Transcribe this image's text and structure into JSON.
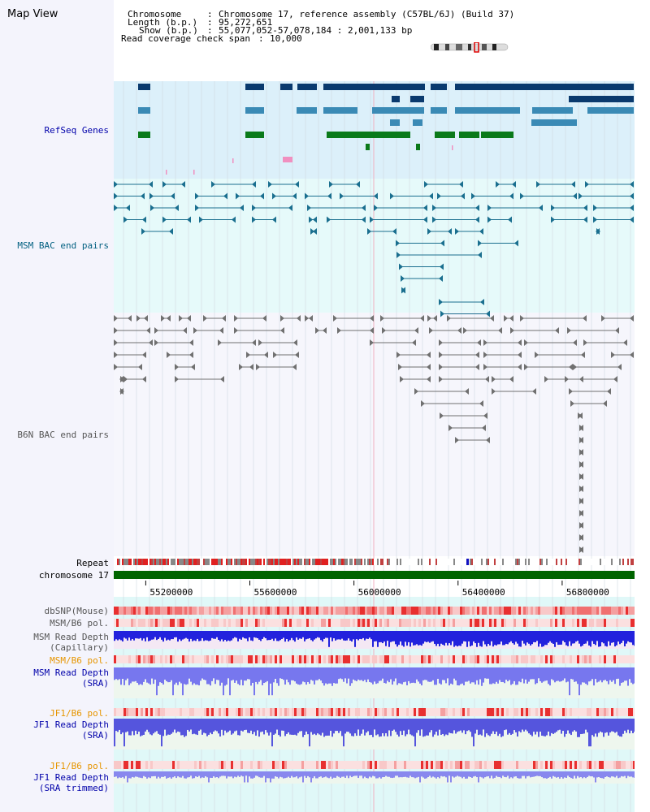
{
  "view": {
    "title": "Map View"
  },
  "header": {
    "chromosome_label": "Chromosome",
    "chromosome_value": "Chromosome 17, reference assembly (C57BL/6J) (Build 37)",
    "length_label": "Length (b.p.)",
    "length_value": "95,272,651",
    "show_label": "Show (b.p.)",
    "show_value": "55,077,052-57,078,184 : 2,001,133 bp",
    "coverage_label": "Read coverage check span",
    "coverage_value": "10,000",
    "sep": ":"
  },
  "tracks": {
    "refseq": "RefSeq Genes",
    "msm_bac": "MSM BAC end pairs",
    "b6n_bac": "B6N BAC end pairs",
    "repeat": "Repeat",
    "chromosome": "chromosome 17",
    "dbsnp": "dbSNP(Mouse)",
    "msm_b6_pol_1": "MSM/B6 pol.",
    "msm_read_depth_cap": "MSM Read Depth\n(Capillary)",
    "msm_b6_pol_2": "MSM/B6 pol.",
    "msm_read_depth_sra": "MSM Read Depth\n(SRA)",
    "jf1_b6_pol_1": "JF1/B6 pol.",
    "jf1_read_depth_sra": "JF1 Read Depth\n(SRA)",
    "jf1_b6_pol_2": "JF1/B6 pol.",
    "jf1_read_depth_trim": "JF1 Read Depth\n(SRA trimmed)"
  },
  "axis": {
    "ticks": [
      "55200000",
      "55600000",
      "56000000",
      "56400000",
      "56800000"
    ],
    "tick_values": [
      55200000,
      55600000,
      56000000,
      56400000,
      56800000
    ],
    "start": 55077052,
    "end": 57078184
  },
  "colors": {
    "refseq_bg": "#dcf0fa",
    "msm_bg": "#e6fafa",
    "b6n_bg": "#f6f6fc",
    "depth_bg": "#e0f8f8",
    "gene_dark": "#0a3a6e",
    "gene_mid": "#3a8ab5",
    "gene_green": "#0a7a1a",
    "chrom_green": "#006400",
    "bac_msm": "#1a6f8f",
    "bac_b6n": "#707070"
  }
}
